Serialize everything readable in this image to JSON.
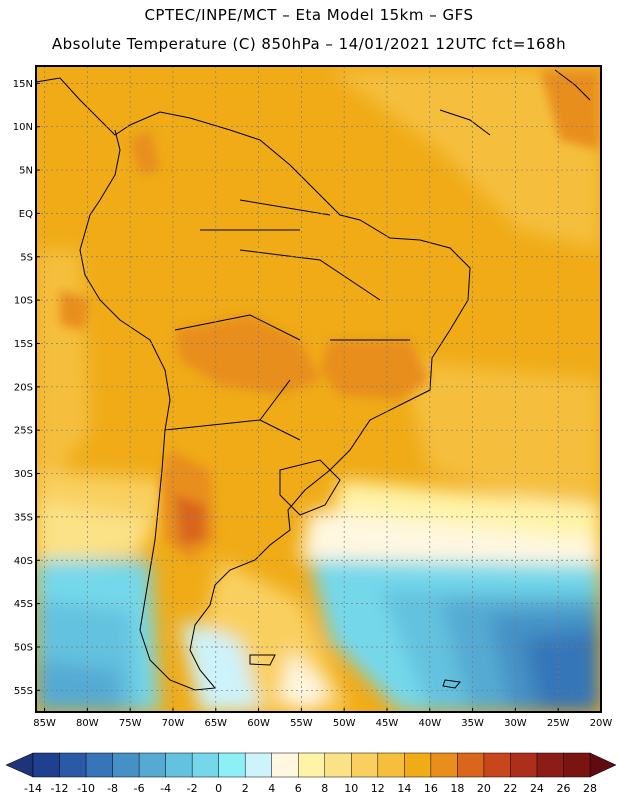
{
  "header": {
    "line1": "CPTEC/INPE/MCT –  Eta Model 15km – GFS",
    "line2": "Absolute Temperature (C) 850hPa – 14/01/2021 12UTC fct=168h"
  },
  "axes": {
    "lat_labels": [
      "15N",
      "10N",
      "5N",
      "EQ",
      "5S",
      "10S",
      "15S",
      "20S",
      "25S",
      "30S",
      "35S",
      "40S",
      "45S",
      "50S",
      "55S"
    ],
    "lat_values": [
      15,
      10,
      5,
      0,
      -5,
      -10,
      -15,
      -20,
      -25,
      -30,
      -35,
      -40,
      -45,
      -50,
      -55
    ],
    "lon_labels": [
      "85W",
      "80W",
      "75W",
      "70W",
      "65W",
      "60W",
      "55W",
      "50W",
      "45W",
      "40W",
      "35W",
      "30W",
      "25W",
      "20W"
    ],
    "lon_values": [
      -85,
      -80,
      -75,
      -70,
      -65,
      -60,
      -55,
      -50,
      -45,
      -40,
      -35,
      -30,
      -25,
      -20
    ],
    "lat_range": [
      -57.5,
      17
    ],
    "lon_range": [
      -86,
      -20
    ],
    "grid": "dotted"
  },
  "colorbar": {
    "labels": [
      "-14",
      "-12",
      "-10",
      "-8",
      "-6",
      "-4",
      "-2",
      "0",
      "2",
      "4",
      "6",
      "8",
      "10",
      "12",
      "14",
      "16",
      "18",
      "20",
      "22",
      "24",
      "26",
      "28"
    ],
    "colors": [
      "#1f3f8f",
      "#2a5aa5",
      "#3676b8",
      "#4591c6",
      "#55aad3",
      "#63c2df",
      "#74d8ea",
      "#8cf0f6",
      "#cdf3fb",
      "#fff7e0",
      "#fff3a8",
      "#fbe286",
      "#f9d060",
      "#f5bf3c",
      "#f0ab17",
      "#e88e1a",
      "#d9661c",
      "#c8471a",
      "#ad2f1b",
      "#8c1c16",
      "#7a1411"
    ],
    "left_arrow_color": "#1d3478",
    "right_arrow_color": "#5f0b10"
  }
}
